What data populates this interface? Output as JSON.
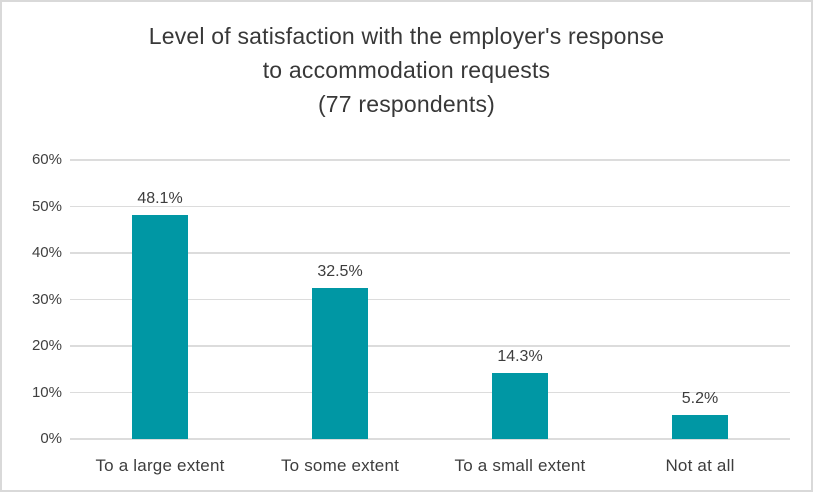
{
  "chart_data": {
    "type": "bar",
    "title": "Level of satisfaction with the employer's response to accommodation requests (77 respondents)",
    "title_lines": [
      "Level of satisfaction with the employer's response",
      "to accommodation requests",
      "(77 respondents)"
    ],
    "categories": [
      "To a large extent",
      "To some extent",
      "To a small extent",
      "Not at all"
    ],
    "values": [
      48.1,
      32.5,
      14.3,
      5.2
    ],
    "data_labels": [
      "48.1%",
      "32.5%",
      "14.3%",
      "5.2%"
    ],
    "y_ticks": [
      "60%",
      "50%",
      "40%",
      "30%",
      "20%",
      "10%",
      "0%"
    ],
    "y_tick_values": [
      60,
      50,
      40,
      30,
      20,
      10,
      0
    ],
    "ylim": [
      0,
      60
    ],
    "xlabel": "",
    "ylabel": "",
    "legend_position": "none",
    "grid": true,
    "bar_color": "#0097a4",
    "gridline_color": "#dcdcdc",
    "text_color": "#3d3d3d"
  }
}
